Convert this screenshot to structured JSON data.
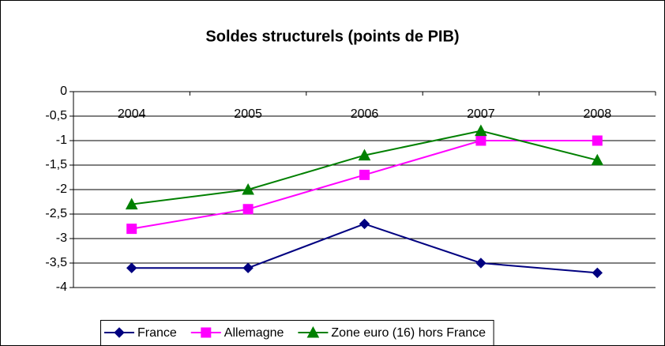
{
  "chart_data": {
    "type": "line",
    "title": "Soldes structurels (points de PIB)",
    "categories": [
      "2004",
      "2005",
      "2006",
      "2007",
      "2008"
    ],
    "series": [
      {
        "name": "France",
        "color": "#000080",
        "marker": "diamond",
        "values": [
          -3.6,
          -3.6,
          -2.7,
          -3.5,
          -3.7
        ]
      },
      {
        "name": "Allemagne",
        "color": "#ff00ff",
        "marker": "square",
        "values": [
          -2.8,
          -2.4,
          -1.7,
          -1.0,
          -1.0
        ]
      },
      {
        "name": "Zone euro (16) hors France",
        "color": "#008000",
        "marker": "triangle",
        "values": [
          -2.3,
          -2.0,
          -1.3,
          -0.8,
          -1.4
        ]
      }
    ],
    "ylim": [
      -4,
      0
    ],
    "yticks": [
      0,
      {
        "value": -0.5,
        "label": "-0,5"
      },
      -1,
      {
        "value": -1.5,
        "label": "-1,5"
      },
      -2,
      {
        "value": -2.5,
        "label": "-2,5"
      },
      -3,
      {
        "value": -3.5,
        "label": "-3,5"
      },
      -4
    ],
    "grid": true,
    "legend": "bottom"
  }
}
